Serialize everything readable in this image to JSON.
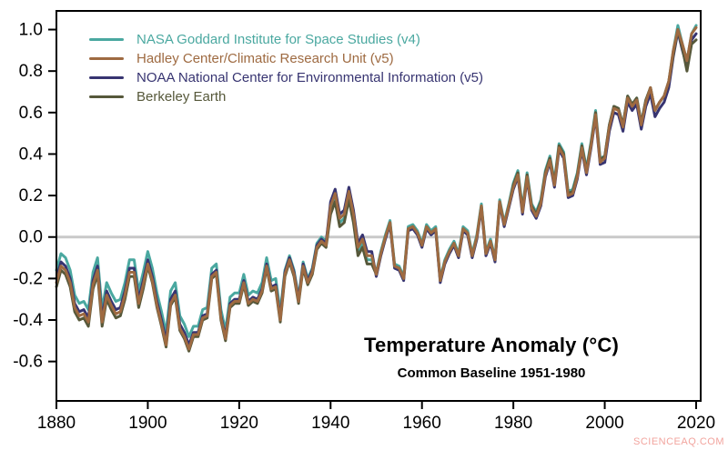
{
  "watermark": {
    "text": "SCIENCEAQ.COM",
    "color": "#f2a49e"
  },
  "chart_data": {
    "type": "line",
    "title": "Temperature Anomaly (°C)",
    "subtitle": "Common Baseline 1951-1980",
    "xlabel": "",
    "ylabel": "",
    "x_range": [
      1880,
      2020,
      1
    ],
    "xlim": [
      1880,
      2021
    ],
    "ylim": [
      -0.79,
      1.09
    ],
    "xticks": [
      1880,
      1900,
      1920,
      1940,
      1960,
      1980,
      2000,
      2020
    ],
    "yticks": [
      1.0,
      0.8,
      0.6,
      0.4,
      0.2,
      0.0,
      -0.2,
      -0.4,
      -0.6
    ],
    "grid": false,
    "legend_position": "top-left",
    "axis_color": "#000000",
    "zero_line": {
      "value": 0.0,
      "color": "#c9c9c9"
    },
    "series": [
      {
        "name": "NASA Goddard Institute for Space Studies (v4)",
        "color": "#4AA8A0",
        "values": [
          -0.16,
          -0.08,
          -0.1,
          -0.16,
          -0.28,
          -0.32,
          -0.31,
          -0.35,
          -0.17,
          -0.1,
          -0.35,
          -0.22,
          -0.27,
          -0.31,
          -0.3,
          -0.22,
          -0.11,
          -0.11,
          -0.26,
          -0.17,
          -0.07,
          -0.15,
          -0.27,
          -0.36,
          -0.46,
          -0.26,
          -0.22,
          -0.38,
          -0.42,
          -0.48,
          -0.43,
          -0.43,
          -0.35,
          -0.34,
          -0.15,
          -0.13,
          -0.35,
          -0.45,
          -0.29,
          -0.27,
          -0.27,
          -0.18,
          -0.28,
          -0.26,
          -0.27,
          -0.22,
          -0.1,
          -0.21,
          -0.2,
          -0.36,
          -0.16,
          -0.09,
          -0.16,
          -0.29,
          -0.12,
          -0.2,
          -0.15,
          -0.03,
          0.0,
          -0.02,
          0.13,
          0.19,
          0.07,
          0.09,
          0.2,
          0.09,
          -0.07,
          -0.03,
          -0.11,
          -0.11,
          -0.17,
          -0.07,
          0.01,
          0.08,
          -0.13,
          -0.14,
          -0.19,
          0.05,
          0.06,
          0.03,
          -0.03,
          0.06,
          0.03,
          0.05,
          -0.2,
          -0.11,
          -0.06,
          -0.02,
          -0.08,
          0.05,
          0.03,
          -0.08,
          0.01,
          0.16,
          -0.07,
          -0.01,
          -0.1,
          0.18,
          0.07,
          0.16,
          0.26,
          0.32,
          0.14,
          0.31,
          0.16,
          0.12,
          0.18,
          0.32,
          0.39,
          0.27,
          0.45,
          0.41,
          0.22,
          0.23,
          0.31,
          0.45,
          0.33,
          0.46,
          0.61,
          0.38,
          0.39,
          0.54,
          0.63,
          0.62,
          0.54,
          0.68,
          0.64,
          0.67,
          0.55,
          0.66,
          0.72,
          0.61,
          0.65,
          0.68,
          0.75,
          0.9,
          1.02,
          0.93,
          0.85,
          0.98,
          1.02
        ]
      },
      {
        "name": "Hadley Center/Climatic Research Unit (v5)",
        "color": "#9E6A41",
        "values": [
          -0.22,
          -0.14,
          -0.16,
          -0.22,
          -0.34,
          -0.38,
          -0.37,
          -0.41,
          -0.23,
          -0.16,
          -0.41,
          -0.28,
          -0.33,
          -0.37,
          -0.36,
          -0.28,
          -0.17,
          -0.17,
          -0.32,
          -0.23,
          -0.13,
          -0.21,
          -0.33,
          -0.42,
          -0.52,
          -0.32,
          -0.28,
          -0.44,
          -0.48,
          -0.54,
          -0.47,
          -0.47,
          -0.39,
          -0.38,
          -0.19,
          -0.17,
          -0.39,
          -0.49,
          -0.33,
          -0.31,
          -0.31,
          -0.22,
          -0.32,
          -0.3,
          -0.31,
          -0.26,
          -0.14,
          -0.25,
          -0.24,
          -0.4,
          -0.18,
          -0.11,
          -0.18,
          -0.31,
          -0.14,
          -0.22,
          -0.17,
          -0.05,
          -0.02,
          -0.04,
          0.15,
          0.21,
          0.09,
          0.11,
          0.22,
          0.11,
          -0.05,
          -0.01,
          -0.09,
          -0.09,
          -0.18,
          -0.08,
          0.0,
          0.07,
          -0.14,
          -0.15,
          -0.2,
          0.04,
          0.05,
          0.02,
          -0.04,
          0.05,
          0.02,
          0.04,
          -0.21,
          -0.12,
          -0.07,
          -0.03,
          -0.09,
          0.04,
          0.02,
          -0.09,
          0.0,
          0.15,
          -0.08,
          -0.02,
          -0.11,
          0.17,
          0.06,
          0.15,
          0.24,
          0.3,
          0.12,
          0.29,
          0.14,
          0.1,
          0.16,
          0.3,
          0.37,
          0.25,
          0.43,
          0.39,
          0.2,
          0.21,
          0.29,
          0.43,
          0.31,
          0.44,
          0.59,
          0.36,
          0.38,
          0.53,
          0.62,
          0.61,
          0.53,
          0.67,
          0.63,
          0.66,
          0.54,
          0.65,
          0.72,
          0.61,
          0.65,
          0.68,
          0.75,
          0.9,
          1.0,
          0.93,
          0.85,
          0.98,
          1.01
        ]
      },
      {
        "name": "NOAA National Center for Environmental Information (v5)",
        "color": "#373471",
        "values": [
          -0.2,
          -0.12,
          -0.14,
          -0.2,
          -0.32,
          -0.36,
          -0.35,
          -0.39,
          -0.21,
          -0.14,
          -0.39,
          -0.26,
          -0.31,
          -0.35,
          -0.34,
          -0.26,
          -0.15,
          -0.15,
          -0.3,
          -0.21,
          -0.11,
          -0.19,
          -0.31,
          -0.4,
          -0.5,
          -0.3,
          -0.26,
          -0.42,
          -0.46,
          -0.52,
          -0.46,
          -0.46,
          -0.38,
          -0.37,
          -0.18,
          -0.16,
          -0.38,
          -0.48,
          -0.32,
          -0.3,
          -0.3,
          -0.21,
          -0.31,
          -0.29,
          -0.3,
          -0.25,
          -0.13,
          -0.24,
          -0.23,
          -0.39,
          -0.17,
          -0.1,
          -0.17,
          -0.3,
          -0.13,
          -0.21,
          -0.16,
          -0.04,
          -0.01,
          -0.03,
          0.17,
          0.23,
          0.11,
          0.13,
          0.24,
          0.13,
          -0.03,
          0.01,
          -0.07,
          -0.07,
          -0.19,
          -0.09,
          -0.01,
          0.06,
          -0.15,
          -0.16,
          -0.21,
          0.03,
          0.04,
          0.01,
          -0.05,
          0.04,
          0.01,
          0.03,
          -0.22,
          -0.13,
          -0.08,
          -0.04,
          -0.1,
          0.03,
          0.01,
          -0.1,
          -0.01,
          0.14,
          -0.09,
          -0.03,
          -0.12,
          0.16,
          0.05,
          0.14,
          0.23,
          0.29,
          0.11,
          0.28,
          0.13,
          0.09,
          0.15,
          0.29,
          0.36,
          0.24,
          0.42,
          0.38,
          0.19,
          0.2,
          0.28,
          0.42,
          0.3,
          0.43,
          0.58,
          0.35,
          0.36,
          0.51,
          0.6,
          0.59,
          0.51,
          0.65,
          0.61,
          0.64,
          0.52,
          0.63,
          0.69,
          0.58,
          0.62,
          0.65,
          0.72,
          0.87,
          0.99,
          0.9,
          0.82,
          0.95,
          0.98
        ]
      },
      {
        "name": "Berkeley Earth",
        "color": "#56583A",
        "values": [
          -0.24,
          -0.16,
          -0.18,
          -0.24,
          -0.36,
          -0.4,
          -0.39,
          -0.43,
          -0.25,
          -0.18,
          -0.43,
          -0.3,
          -0.35,
          -0.39,
          -0.38,
          -0.3,
          -0.19,
          -0.19,
          -0.34,
          -0.25,
          -0.14,
          -0.22,
          -0.34,
          -0.43,
          -0.53,
          -0.33,
          -0.29,
          -0.45,
          -0.49,
          -0.55,
          -0.48,
          -0.48,
          -0.4,
          -0.39,
          -0.2,
          -0.18,
          -0.4,
          -0.5,
          -0.34,
          -0.32,
          -0.32,
          -0.23,
          -0.33,
          -0.31,
          -0.32,
          -0.27,
          -0.15,
          -0.26,
          -0.25,
          -0.41,
          -0.19,
          -0.12,
          -0.19,
          -0.32,
          -0.15,
          -0.23,
          -0.18,
          -0.06,
          -0.03,
          -0.05,
          0.11,
          0.17,
          0.05,
          0.07,
          0.18,
          0.07,
          -0.09,
          -0.05,
          -0.13,
          -0.13,
          -0.18,
          -0.08,
          0.0,
          0.07,
          -0.14,
          -0.15,
          -0.2,
          0.04,
          0.05,
          0.02,
          -0.04,
          0.05,
          0.02,
          0.04,
          -0.21,
          -0.12,
          -0.07,
          -0.03,
          -0.09,
          0.04,
          0.02,
          -0.09,
          0.0,
          0.15,
          -0.08,
          -0.02,
          -0.11,
          0.17,
          0.06,
          0.15,
          0.25,
          0.31,
          0.13,
          0.3,
          0.15,
          0.11,
          0.17,
          0.31,
          0.38,
          0.26,
          0.44,
          0.4,
          0.21,
          0.22,
          0.3,
          0.44,
          0.32,
          0.45,
          0.6,
          0.37,
          0.39,
          0.54,
          0.63,
          0.62,
          0.54,
          0.68,
          0.64,
          0.67,
          0.55,
          0.66,
          0.72,
          0.61,
          0.65,
          0.68,
          0.75,
          0.88,
          1.0,
          0.91,
          0.8,
          0.93,
          0.95
        ]
      }
    ]
  }
}
